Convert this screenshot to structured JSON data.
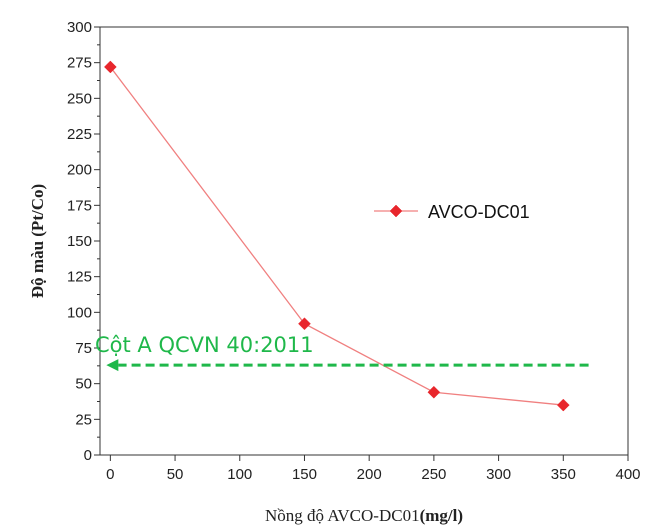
{
  "chart_data": {
    "type": "line",
    "xlabel": "Nồng độ AVCO-DC01",
    "xlabel_unit": "(mg/l)",
    "ylabel": "Độ màu (Pt/Co)",
    "xlim": [
      -8,
      400
    ],
    "ylim": [
      0,
      300
    ],
    "x_ticks": [
      0,
      50,
      100,
      150,
      200,
      250,
      300,
      350,
      400
    ],
    "y_ticks": [
      0,
      25,
      50,
      75,
      100,
      125,
      150,
      175,
      200,
      225,
      250,
      275,
      300
    ],
    "series": [
      {
        "name": "AVCO-DC01",
        "color": "#e8262c",
        "marker": "diamond",
        "points": [
          {
            "x": 0,
            "y": 272
          },
          {
            "x": 150,
            "y": 92
          },
          {
            "x": 250,
            "y": 44
          },
          {
            "x": 350,
            "y": 35
          }
        ]
      }
    ],
    "legend": {
      "position": "right-middle",
      "label": "AVCO-DC01"
    },
    "annotations": [
      {
        "text": "Cột A QCVN 40:2011",
        "y": 63,
        "x_from": 385,
        "x_to": 0,
        "style": "dashed-arrow",
        "color": "#1fb84a"
      }
    ],
    "grid": false
  }
}
